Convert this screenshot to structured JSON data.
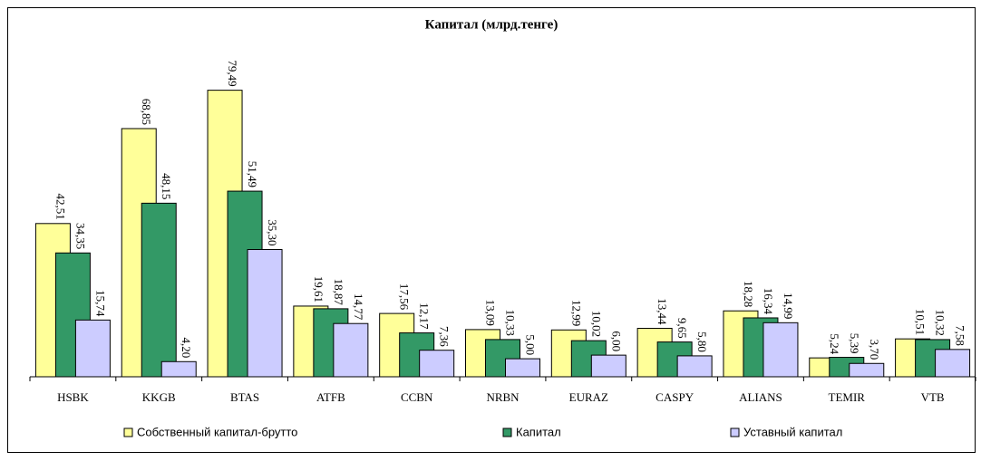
{
  "chart_data": {
    "type": "bar",
    "title": "Капитал (млрд.тенге)",
    "categories": [
      "HSBK",
      "KKGB",
      "BTAS",
      "ATFB",
      "CCBN",
      "NRBN",
      "EURAZ",
      "CASPY",
      "ALIANS",
      "TEMIR",
      "VTB"
    ],
    "ylim": [
      0,
      100
    ],
    "legend": "bottom",
    "series": [
      {
        "name": "Собственный капитал-брутто",
        "color": "#ffff99",
        "values": [
          42.51,
          68.85,
          79.49,
          19.61,
          17.56,
          13.09,
          12.99,
          13.44,
          18.28,
          5.24,
          10.51
        ],
        "value_labels": [
          "42,51",
          "68,85",
          "79,49",
          "19,61",
          "17,56",
          "13,09",
          "12,99",
          "13,44",
          "18,28",
          "5,24",
          "10,51"
        ]
      },
      {
        "name": "Капитал",
        "color": "#339966",
        "values": [
          34.35,
          48.15,
          51.49,
          18.87,
          12.17,
          10.33,
          10.02,
          9.65,
          16.34,
          5.39,
          10.32
        ],
        "value_labels": [
          "34,35",
          "48,15",
          "51,49",
          "18,87",
          "12,17",
          "10,33",
          "10,02",
          "9,65",
          "16,34",
          "5,39",
          "10,32"
        ]
      },
      {
        "name": "Уставный капитал",
        "color": "#ccccff",
        "values": [
          15.74,
          4.2,
          35.3,
          14.77,
          7.36,
          5.0,
          6.0,
          5.8,
          14.99,
          3.7,
          7.58
        ],
        "value_labels": [
          "15,74",
          "4,20",
          "35,30",
          "14,77",
          "7,36",
          "5,00",
          "6,00",
          "5,80",
          "14,99",
          "3,70",
          "7,58"
        ]
      }
    ]
  }
}
